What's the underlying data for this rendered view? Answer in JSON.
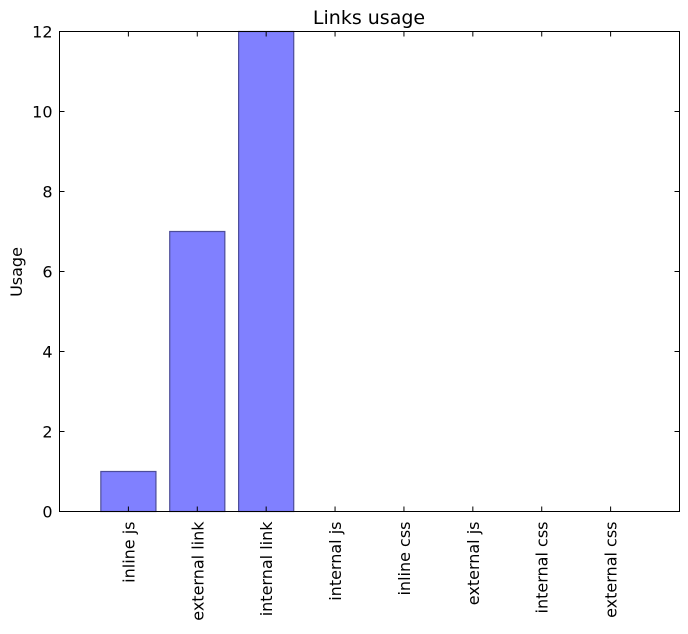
{
  "chart_data": {
    "type": "bar",
    "title": "Links usage",
    "xlabel": "",
    "ylabel": "Usage",
    "categories": [
      "inline js",
      "external link",
      "internal link",
      "internal js",
      "inline css",
      "external js",
      "internal css",
      "external css"
    ],
    "values": [
      1,
      7,
      12,
      0,
      0,
      0,
      0,
      0
    ],
    "ylim": [
      0,
      12
    ],
    "yticks": [
      0,
      2,
      4,
      6,
      8,
      10,
      12
    ],
    "grid": false,
    "bar_color": "#8080ff",
    "bar_edge_color": "#4d4d99"
  }
}
